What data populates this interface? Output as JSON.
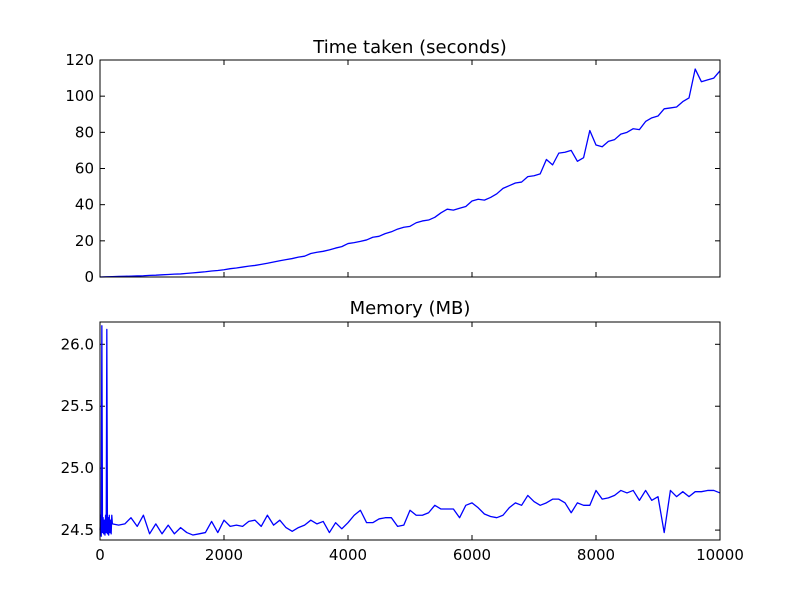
{
  "chart_data": [
    {
      "type": "line",
      "title": "Time taken (seconds)",
      "xlabel": "",
      "ylabel": "",
      "xlim": [
        0,
        10000
      ],
      "ylim": [
        0,
        120
      ],
      "xticks": [
        0,
        2000,
        4000,
        6000,
        8000,
        10000
      ],
      "xtick_labels": [
        "",
        "",
        "",
        "",
        "",
        ""
      ],
      "yticks": [
        0,
        20,
        40,
        60,
        80,
        100,
        120
      ],
      "ytick_labels": [
        "0",
        "20",
        "40",
        "60",
        "80",
        "100",
        "120"
      ],
      "grid": false,
      "line_color": "#0000ff",
      "series": [
        {
          "x": [
            0,
            100,
            200,
            300,
            400,
            500,
            600,
            700,
            800,
            900,
            1000,
            1100,
            1200,
            1300,
            1400,
            1500,
            1600,
            1700,
            1800,
            1900,
            2000,
            2100,
            2200,
            2300,
            2400,
            2500,
            2600,
            2700,
            2800,
            2900,
            3000,
            3100,
            3200,
            3300,
            3400,
            3500,
            3600,
            3700,
            3800,
            3900,
            4000,
            4100,
            4200,
            4300,
            4400,
            4500,
            4600,
            4700,
            4800,
            4900,
            5000,
            5100,
            5200,
            5300,
            5400,
            5500,
            5600,
            5700,
            5800,
            5900,
            6000,
            6100,
            6200,
            6300,
            6400,
            6500,
            6600,
            6700,
            6800,
            6900,
            7000,
            7100,
            7200,
            7300,
            7400,
            7500,
            7600,
            7700,
            7800,
            7900,
            8000,
            8100,
            8200,
            8300,
            8400,
            8500,
            8600,
            8700,
            8800,
            8900,
            9000,
            9100,
            9200,
            9300,
            9400,
            9500,
            9600,
            9700,
            9800,
            9900,
            10000
          ],
          "y": [
            0,
            0.1,
            0.2,
            0.3,
            0.4,
            0.5,
            0.6,
            0.7,
            0.9,
            1.0,
            1.2,
            1.4,
            1.6,
            1.7,
            2.0,
            2.3,
            2.6,
            2.9,
            3.3,
            3.6,
            4.0,
            4.6,
            5.0,
            5.5,
            6.0,
            6.4,
            7.0,
            7.6,
            8.3,
            9.0,
            9.6,
            10.2,
            11.0,
            11.5,
            13.0,
            13.7,
            14.2,
            15.0,
            16.0,
            16.8,
            18.5,
            19.0,
            19.7,
            20.5,
            22.0,
            22.5,
            24.0,
            25.0,
            26.5,
            27.5,
            28.0,
            30.0,
            31.0,
            31.5,
            33.0,
            35.5,
            37.5,
            37.0,
            38.0,
            39.0,
            42.0,
            43.0,
            42.5,
            44.0,
            46.0,
            49.0,
            50.5,
            52.0,
            52.5,
            55.5,
            56.0,
            57.0,
            65.0,
            62.0,
            68.5,
            69.0,
            70.0,
            64.0,
            66.0,
            81.0,
            73.0,
            72.0,
            75.0,
            76.0,
            79.0,
            80.0,
            82.0,
            81.5,
            86.0,
            88.0,
            89.0,
            93.0,
            93.5,
            94.0,
            97.0,
            99.0,
            115.0,
            108.0,
            109.0,
            110.0,
            114.0
          ]
        }
      ]
    },
    {
      "type": "line",
      "title": "Memory (MB)",
      "xlabel": "",
      "ylabel": "",
      "xlim": [
        0,
        10000
      ],
      "ylim": [
        24.42,
        26.18
      ],
      "xticks": [
        0,
        2000,
        4000,
        6000,
        8000,
        10000
      ],
      "xtick_labels": [
        "0",
        "2000",
        "4000",
        "6000",
        "8000",
        "10000"
      ],
      "yticks": [
        24.5,
        25.0,
        25.5,
        26.0
      ],
      "ytick_labels": [
        "24.5",
        "25.0",
        "25.5",
        "26.0"
      ],
      "grid": false,
      "line_color": "#0000ff",
      "series": [
        {
          "x": [
            0,
            10,
            20,
            30,
            40,
            50,
            60,
            70,
            80,
            90,
            100,
            110,
            120,
            130,
            140,
            150,
            160,
            170,
            180,
            190,
            200,
            300,
            400,
            500,
            600,
            700,
            800,
            900,
            1000,
            1100,
            1200,
            1300,
            1400,
            1500,
            1600,
            1700,
            1800,
            1900,
            2000,
            2100,
            2200,
            2300,
            2400,
            2500,
            2600,
            2700,
            2800,
            2900,
            3000,
            3100,
            3200,
            3300,
            3400,
            3500,
            3600,
            3700,
            3800,
            3900,
            4000,
            4100,
            4200,
            4300,
            4400,
            4500,
            4600,
            4700,
            4800,
            4900,
            5000,
            5100,
            5200,
            5300,
            5400,
            5500,
            5600,
            5700,
            5800,
            5900,
            6000,
            6100,
            6200,
            6300,
            6400,
            6500,
            6600,
            6700,
            6800,
            6900,
            7000,
            7100,
            7200,
            7300,
            7400,
            7500,
            7600,
            7700,
            7800,
            7900,
            8000,
            8100,
            8200,
            8300,
            8400,
            8500,
            8600,
            8700,
            8800,
            8900,
            9000,
            9100,
            9200,
            9300,
            9400,
            9500,
            9600,
            9700,
            9800,
            9900,
            10000
          ],
          "y": [
            24.5,
            24.62,
            24.45,
            26.15,
            24.48,
            24.6,
            24.47,
            24.58,
            24.46,
            24.62,
            24.48,
            26.12,
            24.47,
            24.6,
            24.46,
            24.62,
            24.48,
            24.58,
            24.47,
            24.62,
            24.55,
            24.54,
            24.55,
            24.6,
            24.53,
            24.62,
            24.47,
            24.55,
            24.47,
            24.54,
            24.47,
            24.52,
            24.48,
            24.46,
            24.47,
            24.48,
            24.57,
            24.48,
            24.58,
            24.53,
            24.54,
            24.53,
            24.57,
            24.58,
            24.53,
            24.62,
            24.54,
            24.58,
            24.52,
            24.49,
            24.52,
            24.54,
            24.58,
            24.55,
            24.57,
            24.48,
            24.56,
            24.51,
            24.56,
            24.62,
            24.66,
            24.56,
            24.56,
            24.59,
            24.6,
            24.6,
            24.53,
            24.54,
            24.66,
            24.62,
            24.62,
            24.64,
            24.7,
            24.67,
            24.67,
            24.67,
            24.6,
            24.7,
            24.72,
            24.68,
            24.63,
            24.61,
            24.6,
            24.62,
            24.68,
            24.72,
            24.7,
            24.78,
            24.73,
            24.7,
            24.72,
            24.75,
            24.75,
            24.72,
            24.64,
            24.72,
            24.7,
            24.7,
            24.82,
            24.75,
            24.76,
            24.78,
            24.82,
            24.8,
            24.82,
            24.74,
            24.82,
            24.74,
            24.77,
            24.48,
            24.82,
            24.77,
            24.81,
            24.77,
            24.81,
            24.81,
            24.82,
            24.82,
            24.8
          ]
        }
      ]
    }
  ]
}
